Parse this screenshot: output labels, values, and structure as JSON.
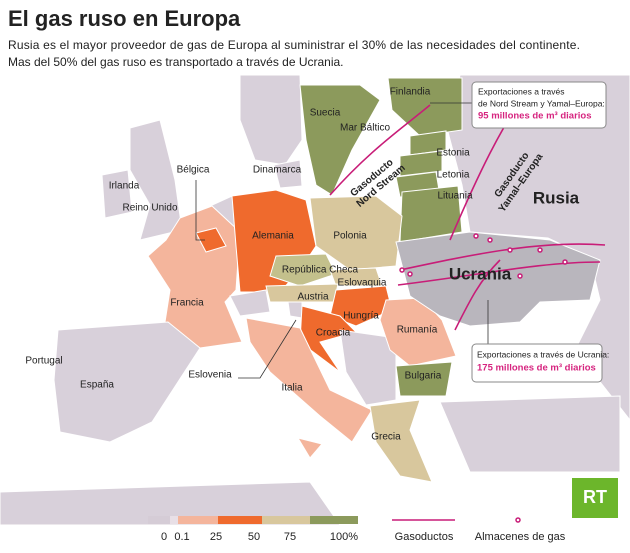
{
  "header": {
    "title": "El gas ruso en Europa",
    "subtitle_lines": [
      "Rusia es el mayor proveedor de gas de Europa al suministrar el 30% de las necesidades del continente.",
      "Mas del 50% del gas ruso es transportado a través de Ucrania."
    ]
  },
  "map": {
    "countries": [
      "Finlandia",
      "Suecia",
      "Estonia",
      "Letonia",
      "Lituania",
      "Dinamarca",
      "Irlanda",
      "Reino Unido",
      "Bélgica",
      "Alemania",
      "Polonia",
      "República Checa",
      "Eslovaquia",
      "Austria",
      "Hungría",
      "Croacia",
      "Francia",
      "Rumanía",
      "Portugal",
      "España",
      "Eslovenia",
      "Italia",
      "Bulgaria",
      "Grecia",
      "Rusia",
      "Ucrania"
    ],
    "sea": "Mar Báltico",
    "pipelines": {
      "nord_stream": [
        "Gasoducto",
        "Nord Stream"
      ],
      "yamal": [
        "Gasoducto",
        "Yamal–Europa"
      ]
    },
    "callouts": {
      "north": [
        "Exportaciones a través",
        "de Nord Stream y Yamal–Europa:",
        "95 millones de m³ diarios"
      ],
      "ukraine": [
        "Exportaciones a través de Ucrania:",
        "175 millones de m³ diarios"
      ]
    }
  },
  "legend": {
    "scale": [
      "0",
      "0.1",
      "25",
      "50",
      "75",
      "100%"
    ],
    "items": [
      "Gasoductos",
      "Almacenes de gas"
    ]
  },
  "logo": "RT"
}
